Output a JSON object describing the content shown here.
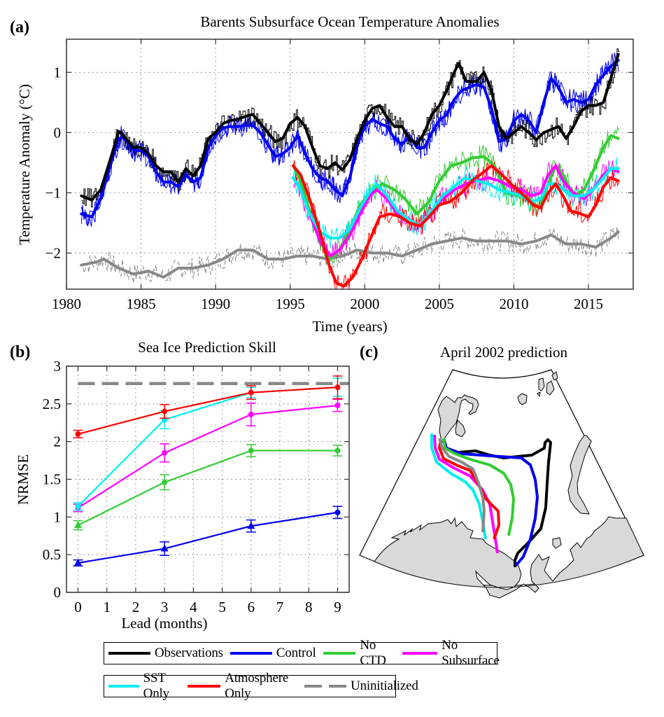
{
  "chart_data": [
    {
      "id": "a",
      "panel_label": "(a)",
      "type": "line",
      "title": "Barents Subsurface Ocean Temperature Anomalies",
      "xlabel": "Time (years)",
      "ylabel": "Temperature Anomaly (°C)",
      "xlim": [
        1980,
        2018
      ],
      "ylim": [
        -2.6,
        1.55
      ],
      "xticks": [
        1980,
        1985,
        1990,
        1995,
        2000,
        2005,
        2010,
        2015
      ],
      "xtick_labels": [
        "1980",
        "1985",
        "1990",
        "1995",
        "2000",
        "2005",
        "2010",
        "2015"
      ],
      "yticks": [
        1,
        0,
        -1,
        -2
      ],
      "ytick_labels": [
        "1",
        "0",
        "−1",
        "−2"
      ],
      "grid": true,
      "note": "Thick lines are smoothed series; thin noisy lines are monthly values (approximate).",
      "series": [
        {
          "name": "Observations",
          "color": "#000000",
          "x": [
            1981,
            1981.7,
            1982.3,
            1983,
            1983.5,
            1983.8,
            1984.5,
            1985,
            1985.5,
            1986,
            1986.5,
            1987,
            1987.5,
            1988,
            1988.5,
            1989,
            1989.5,
            1990,
            1990.5,
            1991,
            1991.5,
            1992,
            1992.5,
            1993,
            1993.5,
            1994,
            1994.5,
            1995,
            1995.5,
            1996,
            1996.5,
            1997,
            1997.5,
            1998,
            1998.5,
            1999,
            1999.5,
            2000,
            2000.5,
            2001,
            2001.5,
            2002,
            2002.5,
            2003,
            2003.5,
            2004,
            2004.5,
            2005,
            2005.5,
            2006,
            2006.3,
            2006.8,
            2007.5,
            2008,
            2008.5,
            2009,
            2009.5,
            2010,
            2010.5,
            2011,
            2011.5,
            2012,
            2012.5,
            2013,
            2013.5,
            2014,
            2014.5,
            2015,
            2015.5,
            2016,
            2016.5,
            2017
          ],
          "y": [
            -1.05,
            -1.12,
            -0.95,
            -0.4,
            0.02,
            -0.05,
            -0.25,
            -0.25,
            -0.35,
            -0.55,
            -0.65,
            -0.65,
            -0.82,
            -0.6,
            -0.72,
            -0.55,
            -0.1,
            0.0,
            0.15,
            0.2,
            0.22,
            0.27,
            0.3,
            0.15,
            0.0,
            -0.15,
            -0.1,
            0.15,
            0.25,
            0.1,
            -0.25,
            -0.55,
            -0.6,
            -0.5,
            -0.62,
            -0.45,
            -0.1,
            0.2,
            0.4,
            0.45,
            0.25,
            0.1,
            0.1,
            -0.1,
            -0.2,
            0.0,
            0.3,
            0.45,
            0.7,
            1.0,
            1.15,
            0.85,
            0.85,
            1.0,
            0.7,
            0.1,
            -0.1,
            0.0,
            0.1,
            0.0,
            -0.12,
            0.0,
            0.05,
            0.1,
            -0.1,
            0.1,
            0.35,
            0.45,
            0.45,
            0.5,
            0.9,
            1.3
          ]
        },
        {
          "name": "Control",
          "color": "#0000ee",
          "x": [
            1981,
            1981.7,
            1982.3,
            1983,
            1983.5,
            1983.8,
            1984.5,
            1985,
            1985.5,
            1986,
            1986.5,
            1987,
            1987.5,
            1988,
            1988.5,
            1989,
            1989.5,
            1990,
            1990.5,
            1991,
            1991.5,
            1992,
            1992.5,
            1993,
            1993.5,
            1994,
            1994.5,
            1995,
            1995.5,
            1996,
            1996.5,
            1997,
            1997.5,
            1998,
            1998.5,
            1999,
            1999.5,
            2000,
            2000.5,
            2001,
            2001.5,
            2002,
            2002.5,
            2003,
            2003.5,
            2004,
            2004.5,
            2005,
            2005.5,
            2006,
            2006.5,
            2007,
            2007.5,
            2008,
            2008.5,
            2009,
            2009.5,
            2010,
            2010.5,
            2011,
            2011.5,
            2012,
            2012.5,
            2013,
            2013.5,
            2014,
            2014.5,
            2015,
            2015.5,
            2016,
            2016.5,
            2017
          ],
          "y": [
            -1.35,
            -1.4,
            -1.1,
            -0.5,
            -0.1,
            -0.08,
            -0.3,
            -0.3,
            -0.4,
            -0.65,
            -0.82,
            -0.82,
            -0.9,
            -0.7,
            -0.82,
            -0.75,
            -0.25,
            -0.05,
            0.08,
            0.1,
            0.1,
            0.12,
            0.12,
            0.0,
            -0.2,
            -0.4,
            -0.35,
            -0.25,
            -0.05,
            -0.35,
            -0.6,
            -0.75,
            -0.8,
            -0.95,
            -1.05,
            -0.75,
            -0.2,
            0.1,
            0.22,
            0.15,
            0.1,
            -0.1,
            -0.2,
            -0.05,
            -0.25,
            -0.25,
            0.0,
            0.2,
            0.3,
            0.55,
            0.7,
            0.75,
            0.8,
            0.75,
            0.4,
            -0.15,
            -0.1,
            0.2,
            0.3,
            0.2,
            0.0,
            0.5,
            0.9,
            0.75,
            0.5,
            0.55,
            0.5,
            0.55,
            0.8,
            0.95,
            1.1,
            1.2
          ]
        },
        {
          "name": "No CTD",
          "color": "#33cc33",
          "x": [
            1995.2,
            1995.7,
            1996.3,
            1997,
            1997.7,
            1998.3,
            1999,
            1999.7,
            2000.5,
            2001.2,
            2002,
            2002.7,
            2003.5,
            2004.3,
            2005,
            2005.8,
            2006.5,
            2007.2,
            2008,
            2008.7,
            2009.5,
            2010.3,
            2011,
            2011.7,
            2012.3,
            2012.8,
            2013.3,
            2014,
            2014.7,
            2015.3,
            2016,
            2016.5,
            2017
          ],
          "y": [
            -0.55,
            -0.8,
            -1.3,
            -1.8,
            -2.1,
            -1.95,
            -1.6,
            -1.2,
            -0.95,
            -0.85,
            -0.95,
            -1.1,
            -1.35,
            -1.15,
            -0.8,
            -0.55,
            -0.5,
            -0.42,
            -0.4,
            -0.55,
            -1.0,
            -1.05,
            -1.1,
            -1.25,
            -0.85,
            -0.55,
            -0.7,
            -1.05,
            -0.95,
            -0.65,
            -0.25,
            -0.05,
            -0.1
          ]
        },
        {
          "name": "No Subsurface",
          "color": "#ff00ff",
          "x": [
            1995.2,
            1995.7,
            1996.3,
            1997,
            1997.7,
            1998.3,
            1999,
            1999.7,
            2000.3,
            2000.8,
            2001.5,
            2002.2,
            2003,
            2003.7,
            2004.5,
            2005.2,
            2006,
            2006.8,
            2007.5,
            2008.3,
            2009,
            2009.8,
            2010.5,
            2011.2,
            2011.8,
            2012.3,
            2012.8,
            2013.3,
            2014,
            2014.7,
            2015.3,
            2016,
            2016.5,
            2017
          ],
          "y": [
            -0.75,
            -0.95,
            -1.35,
            -1.8,
            -2.05,
            -1.95,
            -1.7,
            -1.35,
            -1.05,
            -0.95,
            -1.1,
            -1.35,
            -1.5,
            -1.55,
            -1.35,
            -1.1,
            -0.95,
            -0.85,
            -0.8,
            -0.75,
            -0.8,
            -0.9,
            -0.95,
            -1.05,
            -1.0,
            -0.7,
            -0.55,
            -0.8,
            -1.0,
            -1.1,
            -0.95,
            -0.7,
            -0.6,
            -0.65
          ]
        },
        {
          "name": "SST Only",
          "color": "#00eeee",
          "x": [
            1995.2,
            1995.7,
            1996.3,
            1997,
            1997.7,
            1998.3,
            1999,
            1999.7,
            2000.3,
            2000.8,
            2001.5,
            2002.2,
            2003,
            2003.7,
            2004.5,
            2005.2,
            2006,
            2006.7,
            2007.5,
            2008.3,
            2009,
            2009.8,
            2010.5,
            2011.2,
            2011.8,
            2012.3,
            2012.8,
            2013.3,
            2014,
            2014.7,
            2015.3,
            2016,
            2016.5,
            2017
          ],
          "y": [
            -0.75,
            -0.95,
            -1.35,
            -1.65,
            -1.75,
            -1.75,
            -1.6,
            -1.25,
            -1.0,
            -0.85,
            -1.05,
            -1.3,
            -1.45,
            -1.55,
            -1.3,
            -1.05,
            -0.9,
            -0.75,
            -0.8,
            -0.85,
            -0.95,
            -1.0,
            -1.05,
            -1.15,
            -1.1,
            -0.85,
            -0.85,
            -0.95,
            -1.05,
            -1.05,
            -0.95,
            -0.75,
            -0.6,
            -0.6
          ]
        },
        {
          "name": "Atmosphere Only",
          "color": "#ff0000",
          "x": [
            1995.2,
            1995.7,
            1996.3,
            1997,
            1997.6,
            1998.1,
            1998.6,
            1999.2,
            1999.8,
            2000.4,
            2001,
            2001.7,
            2002.4,
            2003,
            2003.7,
            2004.3,
            2005,
            2005.7,
            2006.5,
            2007.2,
            2008,
            2008.5,
            2009.2,
            2010,
            2010.7,
            2011.3,
            2011.8,
            2012.3,
            2012.8,
            2013.3,
            2013.8,
            2014.5,
            2015,
            2015.5,
            2016,
            2016.5,
            2017
          ],
          "y": [
            -0.55,
            -0.7,
            -1.1,
            -1.65,
            -2.2,
            -2.5,
            -2.55,
            -2.4,
            -2.1,
            -1.75,
            -1.4,
            -1.35,
            -1.4,
            -1.5,
            -1.55,
            -1.4,
            -1.2,
            -1.15,
            -1.0,
            -0.8,
            -0.65,
            -0.55,
            -0.7,
            -0.9,
            -1.05,
            -1.2,
            -1.25,
            -1.0,
            -0.85,
            -1.05,
            -1.3,
            -1.35,
            -1.4,
            -1.2,
            -0.9,
            -0.75,
            -0.8
          ]
        },
        {
          "name": "Uninitialized",
          "color": "#888888",
          "x": [
            1981,
            1982,
            1982.5,
            1983.5,
            1984.5,
            1985.5,
            1986.5,
            1987.5,
            1988.5,
            1989.5,
            1990.5,
            1991.5,
            1992.5,
            1993.5,
            1994.5,
            1995.5,
            1996.5,
            1997.5,
            1998.5,
            1999.5,
            2000.5,
            2001.5,
            2002.5,
            2003.5,
            2004.5,
            2005.5,
            2006.5,
            2007.5,
            2008.5,
            2009.5,
            2010.5,
            2011.5,
            2012.5,
            2013.5,
            2014.5,
            2015.5,
            2016.5,
            2017
          ],
          "y": [
            -2.2,
            -2.15,
            -2.1,
            -2.25,
            -2.35,
            -2.3,
            -2.4,
            -2.25,
            -2.25,
            -2.2,
            -2.1,
            -1.95,
            -1.95,
            -2.1,
            -2.1,
            -2.05,
            -2.05,
            -2.1,
            -2.05,
            -1.95,
            -2.0,
            -2.0,
            -2.05,
            -1.95,
            -1.85,
            -1.8,
            -1.75,
            -1.8,
            -1.8,
            -1.8,
            -1.85,
            -1.8,
            -1.7,
            -1.85,
            -1.85,
            -1.9,
            -1.75,
            -1.65
          ]
        }
      ]
    },
    {
      "id": "b",
      "panel_label": "(b)",
      "type": "line",
      "title": "Sea Ice Prediction Skill",
      "xlabel": "Lead (months)",
      "ylabel": "NRMSE",
      "xlim": [
        -0.4,
        9.4
      ],
      "ylim": [
        0,
        3
      ],
      "xticks": [
        0,
        1,
        2,
        3,
        4,
        5,
        6,
        7,
        8,
        9
      ],
      "xtick_labels": [
        "0",
        "1",
        "2",
        "3",
        "4",
        "5",
        "6",
        "7",
        "8",
        "9"
      ],
      "yticks": [
        0,
        0.5,
        1,
        1.5,
        2,
        2.5,
        3
      ],
      "ytick_labels": [
        "0",
        "0.5",
        "1",
        "1.5",
        "2",
        "2.5",
        "3"
      ],
      "grid": true,
      "reference_line": {
        "name": "Uninitialized",
        "y": 2.77,
        "color": "#888888",
        "style": "dashed"
      },
      "series": [
        {
          "name": "Control",
          "color": "#0000ee",
          "x": [
            0,
            3,
            6,
            9
          ],
          "y": [
            0.39,
            0.58,
            0.88,
            1.06
          ],
          "err": [
            0.04,
            0.09,
            0.08,
            0.08
          ],
          "markers": [
            "triangle",
            "triangle",
            "triangle",
            "circle"
          ]
        },
        {
          "name": "No CTD",
          "color": "#33cc33",
          "x": [
            0,
            3,
            6,
            9
          ],
          "y": [
            0.89,
            1.46,
            1.88,
            1.88
          ],
          "err": [
            0.06,
            0.1,
            0.08,
            0.07
          ],
          "markers": [
            "triangle",
            "circle",
            "circle",
            "circle"
          ]
        },
        {
          "name": "No Subsurface",
          "color": "#ff00ff",
          "x": [
            0,
            3,
            6,
            9
          ],
          "y": [
            1.12,
            1.85,
            2.36,
            2.48
          ],
          "err": [
            0.05,
            0.12,
            0.15,
            0.08
          ],
          "markers": [
            "circle",
            "circle",
            "circle",
            "circle"
          ]
        },
        {
          "name": "SST Only",
          "color": "#00eeee",
          "x": [
            0,
            3,
            6,
            9
          ],
          "y": [
            1.14,
            2.29,
            2.65,
            2.72
          ],
          "err": [
            0.05,
            0.12,
            0.07,
            0.12
          ],
          "markers": [
            "circle",
            "circle",
            "circle",
            "circle"
          ]
        },
        {
          "name": "Atmosphere Only",
          "color": "#ff0000",
          "x": [
            0,
            3,
            6,
            9
          ],
          "y": [
            2.1,
            2.4,
            2.65,
            2.72
          ],
          "err": [
            0.05,
            0.09,
            0.09,
            0.15
          ],
          "markers": [
            "circle",
            "circle",
            "circle",
            "circle"
          ]
        }
      ]
    },
    {
      "id": "c",
      "panel_label": "(c)",
      "type": "map",
      "title": "April 2002 prediction",
      "description": "Barents Sea ice-edge positions for each experiment (polar-stereographic sector map, land in light gray)",
      "land_color": "#d9d9d9",
      "lines": [
        {
          "name": "Observations",
          "color": "#000000"
        },
        {
          "name": "Control",
          "color": "#0000ee"
        },
        {
          "name": "No CTD",
          "color": "#33cc33"
        },
        {
          "name": "No Subsurface",
          "color": "#ff00ff"
        },
        {
          "name": "SST Only",
          "color": "#00eeee"
        },
        {
          "name": "Atmosphere Only",
          "color": "#ff0000"
        },
        {
          "name": "Uninitialized",
          "color": "#888888"
        }
      ]
    }
  ],
  "legend": {
    "row1": [
      {
        "label": "Observations",
        "color": "#000000",
        "style": "solid"
      },
      {
        "label": "Control",
        "color": "#0000ee",
        "style": "solid"
      },
      {
        "label": "No CTD",
        "color": "#33cc33",
        "style": "solid"
      },
      {
        "label": "No Subsurface",
        "color": "#ff00ff",
        "style": "solid"
      }
    ],
    "row2": [
      {
        "label": "SST Only",
        "color": "#00eeee",
        "style": "solid"
      },
      {
        "label": "Atmosphere Only",
        "color": "#ff0000",
        "style": "solid"
      },
      {
        "label": "Uninitialized",
        "color": "#888888",
        "style": "dashed"
      }
    ]
  }
}
